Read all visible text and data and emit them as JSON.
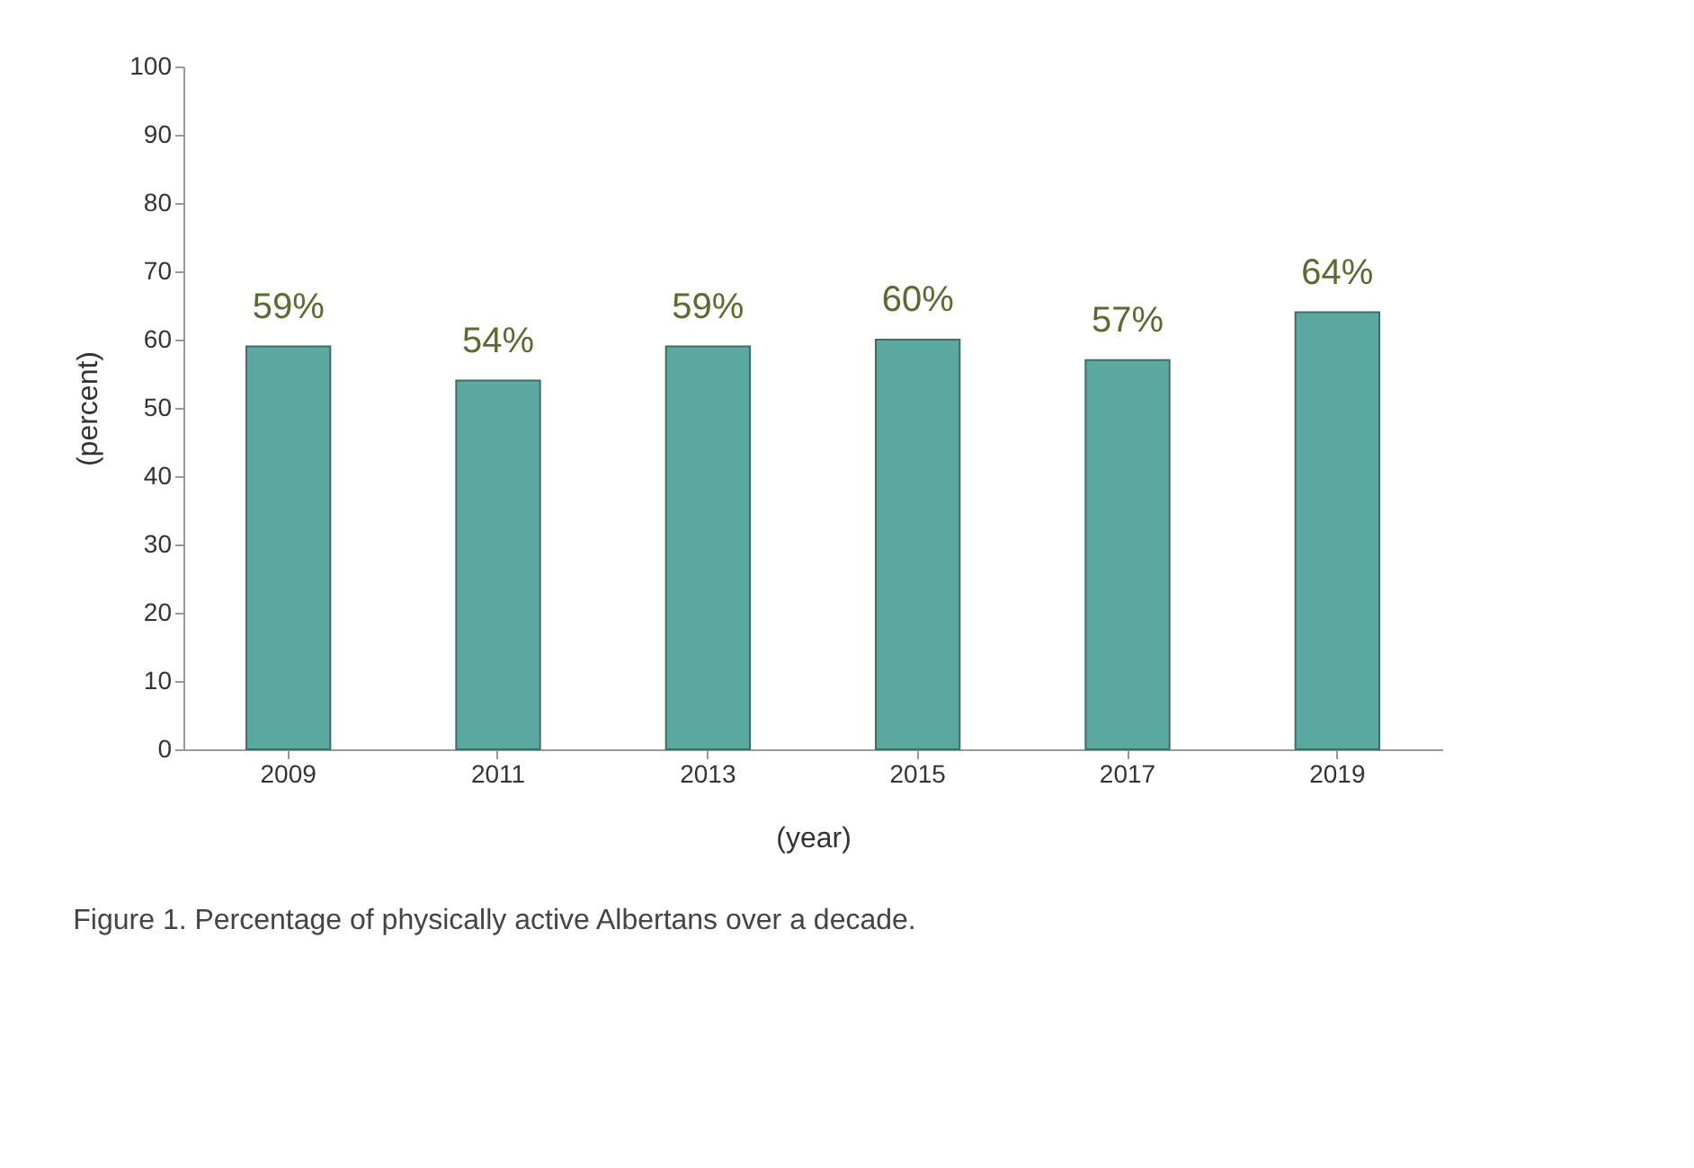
{
  "chart_data": {
    "type": "bar",
    "categories": [
      "2009",
      "2011",
      "2013",
      "2015",
      "2017",
      "2019"
    ],
    "values": [
      59,
      54,
      59,
      60,
      57,
      64
    ],
    "value_labels": [
      "59%",
      "54%",
      "59%",
      "60%",
      "57%",
      "64%"
    ],
    "color": "#5ba8a0",
    "ylim": [
      0,
      100
    ],
    "yticks": [
      0,
      10,
      20,
      30,
      40,
      50,
      60,
      70,
      80,
      90,
      100
    ],
    "xlabel": "(year)",
    "ylabel": "(percent)",
    "annotations": [
      "Figure 1. Percentage of physically active Albertans over a decade."
    ],
    "grid": false
  }
}
